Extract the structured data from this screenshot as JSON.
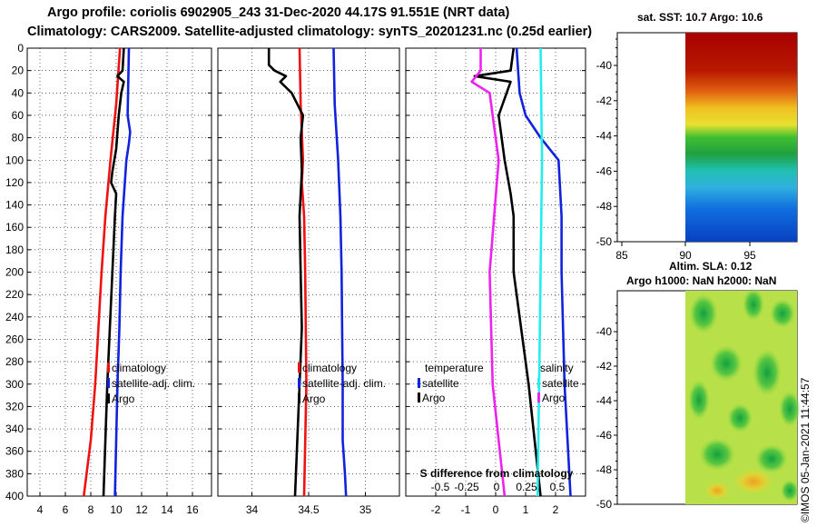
{
  "header": {
    "line1": "Argo profile: coriolis 6902905_243 31-Dec-2020 44.17S 91.551E (NRT data)",
    "line2": "Climatology: CARS2009. Satellite-adjusted climatology: synTS_20201231.nc (0.25d earlier)"
  },
  "colors": {
    "climatology": "#ee1111",
    "satellite": "#1122dd",
    "argo": "#000000",
    "magenta": "#ee22ee",
    "cyan": "#22eeee"
  },
  "depth_ticks": [
    "0",
    "20",
    "40",
    "60",
    "80",
    "100",
    "120",
    "140",
    "160",
    "180",
    "200",
    "220",
    "240",
    "260",
    "280",
    "300",
    "320",
    "340",
    "360",
    "380",
    "400"
  ],
  "chart_data": [
    {
      "type": "line",
      "name": "temperature-profile",
      "xlabel": "",
      "ylabel": "",
      "xlim": [
        3,
        17.5
      ],
      "ylim": [
        400,
        0
      ],
      "xticks": [
        "4",
        "6",
        "8",
        "10",
        "12",
        "14",
        "16"
      ],
      "legend": [
        "climatology",
        "satellite-adj. clim.",
        "Argo"
      ],
      "series": [
        {
          "name": "climatology",
          "color": "climatology",
          "depth": [
            0,
            50,
            100,
            150,
            200,
            250,
            300,
            350,
            400
          ],
          "values": [
            10.3,
            10.0,
            9.55,
            9.15,
            8.85,
            8.6,
            8.35,
            8.0,
            7.45
          ]
        },
        {
          "name": "satellite-adj. clim.",
          "color": "satellite",
          "depth": [
            0,
            60,
            75,
            85,
            100,
            150,
            200,
            250,
            300,
            350,
            400
          ],
          "values": [
            11.0,
            10.9,
            11.1,
            11.0,
            10.8,
            10.5,
            10.35,
            10.25,
            10.1,
            10.0,
            9.9
          ]
        },
        {
          "name": "Argo",
          "color": "argo",
          "depth": [
            0,
            20,
            25,
            30,
            40,
            60,
            90,
            110,
            120,
            130,
            150,
            200,
            250,
            300,
            350,
            400
          ],
          "values": [
            10.6,
            10.5,
            10.1,
            10.6,
            10.4,
            10.2,
            10.0,
            9.7,
            9.6,
            10.0,
            9.9,
            9.7,
            9.5,
            9.3,
            9.15,
            9.0
          ]
        }
      ]
    },
    {
      "type": "line",
      "name": "salinity-profile",
      "xlabel": "",
      "ylabel": "",
      "xlim": [
        33.7,
        35.3
      ],
      "ylim": [
        400,
        0
      ],
      "xticks": [
        "34",
        "34.5",
        "35"
      ],
      "legend": [
        "climatology",
        "satellite-adj. clim.",
        "Argo"
      ],
      "series": [
        {
          "name": "climatology",
          "color": "climatology",
          "depth": [
            0,
            50,
            100,
            120,
            150,
            200,
            300,
            400
          ],
          "values": [
            34.42,
            34.43,
            34.45,
            34.44,
            34.46,
            34.47,
            34.48,
            34.46
          ]
        },
        {
          "name": "satellite-adj. clim.",
          "color": "satellite",
          "depth": [
            0,
            50,
            100,
            150,
            200,
            300,
            350,
            380,
            400
          ],
          "values": [
            34.72,
            34.73,
            34.76,
            34.78,
            34.79,
            34.8,
            34.8,
            34.82,
            34.83
          ]
        },
        {
          "name": "Argo",
          "color": "argo",
          "depth": [
            0,
            15,
            20,
            25,
            30,
            40,
            50,
            60,
            80,
            110,
            150,
            200,
            250,
            300,
            350,
            400
          ],
          "values": [
            34.15,
            34.15,
            34.2,
            34.3,
            34.25,
            34.35,
            34.4,
            34.45,
            34.43,
            34.44,
            34.42,
            34.43,
            34.44,
            34.42,
            34.4,
            34.38
          ]
        }
      ]
    },
    {
      "type": "line",
      "name": "difference-from-climatology",
      "xlabel": "S difference from climatology",
      "ylabel": "",
      "xlim": [
        -3,
        3
      ],
      "ylim": [
        400,
        0
      ],
      "xticks": [
        "-2",
        "-1",
        "0",
        "1",
        "2"
      ],
      "secondary_xticks": [
        "-0.5",
        "-0.25",
        "0",
        "0.25",
        "0.5"
      ],
      "legend": [
        {
          "group": "temperature",
          "items": [
            "satellite",
            "Argo"
          ]
        },
        {
          "group": "salinity",
          "items": [
            "satellite",
            "Argo"
          ]
        }
      ],
      "series": [
        {
          "name": "temperature satellite",
          "color": "satellite",
          "depth": [
            0,
            40,
            60,
            80,
            100,
            150,
            200,
            300,
            400
          ],
          "values": [
            0.7,
            0.8,
            1.0,
            1.5,
            2.1,
            2.2,
            2.2,
            2.3,
            2.5
          ]
        },
        {
          "name": "temperature Argo",
          "color": "argo",
          "depth": [
            0,
            20,
            25,
            30,
            45,
            60,
            100,
            130,
            150,
            200,
            300,
            400
          ],
          "values": [
            0.6,
            0.5,
            -0.7,
            0.5,
            0.3,
            0.1,
            0.3,
            0.5,
            0.6,
            0.6,
            1.1,
            1.5
          ]
        },
        {
          "name": "salinity satellite",
          "color": "cyan",
          "depth": [
            0,
            100,
            200,
            300,
            400
          ],
          "values": [
            1.5,
            1.55,
            1.5,
            1.45,
            1.4
          ]
        },
        {
          "name": "salinity Argo",
          "color": "magenta",
          "depth": [
            0,
            20,
            30,
            40,
            100,
            200,
            300,
            400
          ],
          "values": [
            -0.5,
            -0.5,
            -0.8,
            -0.2,
            0.1,
            -0.2,
            -0.1,
            0.3
          ]
        }
      ]
    }
  ],
  "maps": {
    "sst": {
      "title": "sat. SST: 10.7 Argo: 10.6",
      "yticks": [
        "-40",
        "-42",
        "-44",
        "-46",
        "-48",
        "-50"
      ],
      "xticks": [
        "85",
        "90",
        "95"
      ]
    },
    "sla": {
      "title_line1": "Altim. SLA: 0.12",
      "title_line2": "Argo h1000: NaN h2000: NaN",
      "yticks": [
        "-40",
        "-42",
        "-44",
        "-46",
        "-48",
        "-50"
      ]
    }
  },
  "stamp": "©IMOS 05-Jan-2021 11:44:57"
}
